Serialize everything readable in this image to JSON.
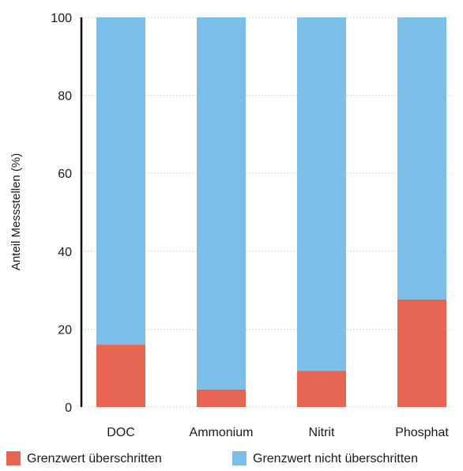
{
  "chart_data": {
    "type": "bar",
    "stacked": true,
    "categories": [
      "DOC",
      "Ammonium",
      "Nitrit",
      "Phosphat"
    ],
    "series": [
      {
        "name": "Grenzwert überschritten",
        "color": "#e66452",
        "values": [
          16,
          4.5,
          9.3,
          27.6
        ]
      },
      {
        "name": "Grenzwert nicht überschritten",
        "color": "#7bbfe8",
        "values": [
          84,
          95.5,
          90.7,
          72.4
        ]
      }
    ],
    "title": "",
    "xlabel": "",
    "ylabel": "Anteil Messstellen (%)",
    "ylim": [
      0,
      100
    ],
    "yticks": [
      0,
      20,
      40,
      60,
      80,
      100
    ],
    "grid": true,
    "legend_position": "bottom"
  }
}
